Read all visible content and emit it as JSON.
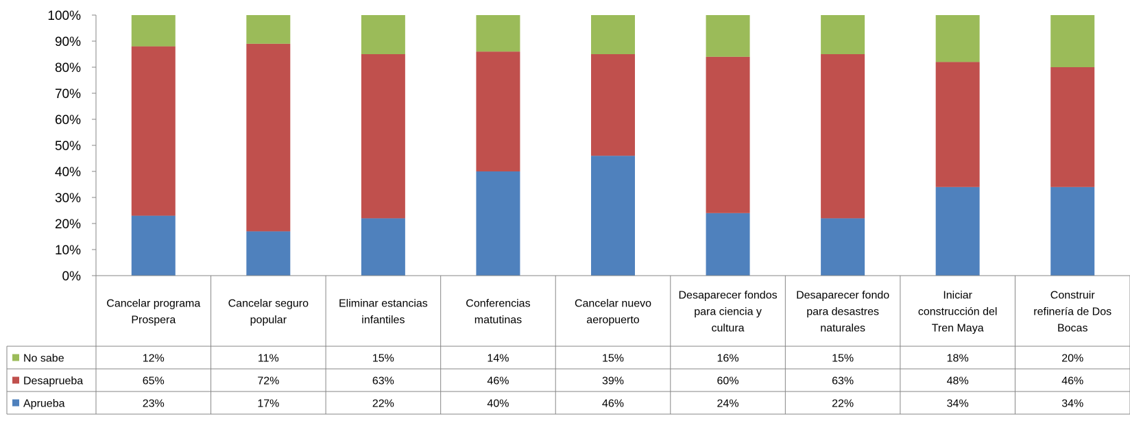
{
  "chart_data": {
    "type": "bar",
    "stacked": true,
    "ylim": [
      0,
      100
    ],
    "y_tick_labels": [
      "0%",
      "10%",
      "20%",
      "30%",
      "40%",
      "50%",
      "60%",
      "70%",
      "80%",
      "90%",
      "100%"
    ],
    "categories": [
      "Cancelar programa Prospera",
      "Cancelar seguro popular",
      "Eliminar estancias infantiles",
      "Conferencias matutinas",
      "Cancelar nuevo aeropuerto",
      "Desaparecer fondos para ciencia y cultura",
      "Desaparecer fondo para desastres naturales",
      "Iniciar construcción del Tren Maya",
      "Construir refinería de Dos Bocas"
    ],
    "series": [
      {
        "name": "Aprueba",
        "color": "#4f81bd",
        "values": [
          23,
          17,
          22,
          40,
          46,
          24,
          22,
          34,
          34
        ],
        "labels": [
          "23%",
          "17%",
          "22%",
          "40%",
          "46%",
          "24%",
          "22%",
          "34%",
          "34%"
        ]
      },
      {
        "name": "Desaprueba",
        "color": "#c0504d",
        "values": [
          65,
          72,
          63,
          46,
          39,
          60,
          63,
          48,
          46
        ],
        "labels": [
          "65%",
          "72%",
          "63%",
          "46%",
          "39%",
          "60%",
          "63%",
          "48%",
          "46%"
        ]
      },
      {
        "name": "No sabe",
        "color": "#9bbb59",
        "values": [
          12,
          11,
          15,
          14,
          15,
          16,
          15,
          18,
          20
        ],
        "labels": [
          "12%",
          "11%",
          "15%",
          "14%",
          "15%",
          "16%",
          "15%",
          "18%",
          "20%"
        ]
      }
    ],
    "table_row_order": [
      "No sabe",
      "Desaprueba",
      "Aprueba"
    ],
    "grid": false,
    "legend": "data-table-left"
  }
}
